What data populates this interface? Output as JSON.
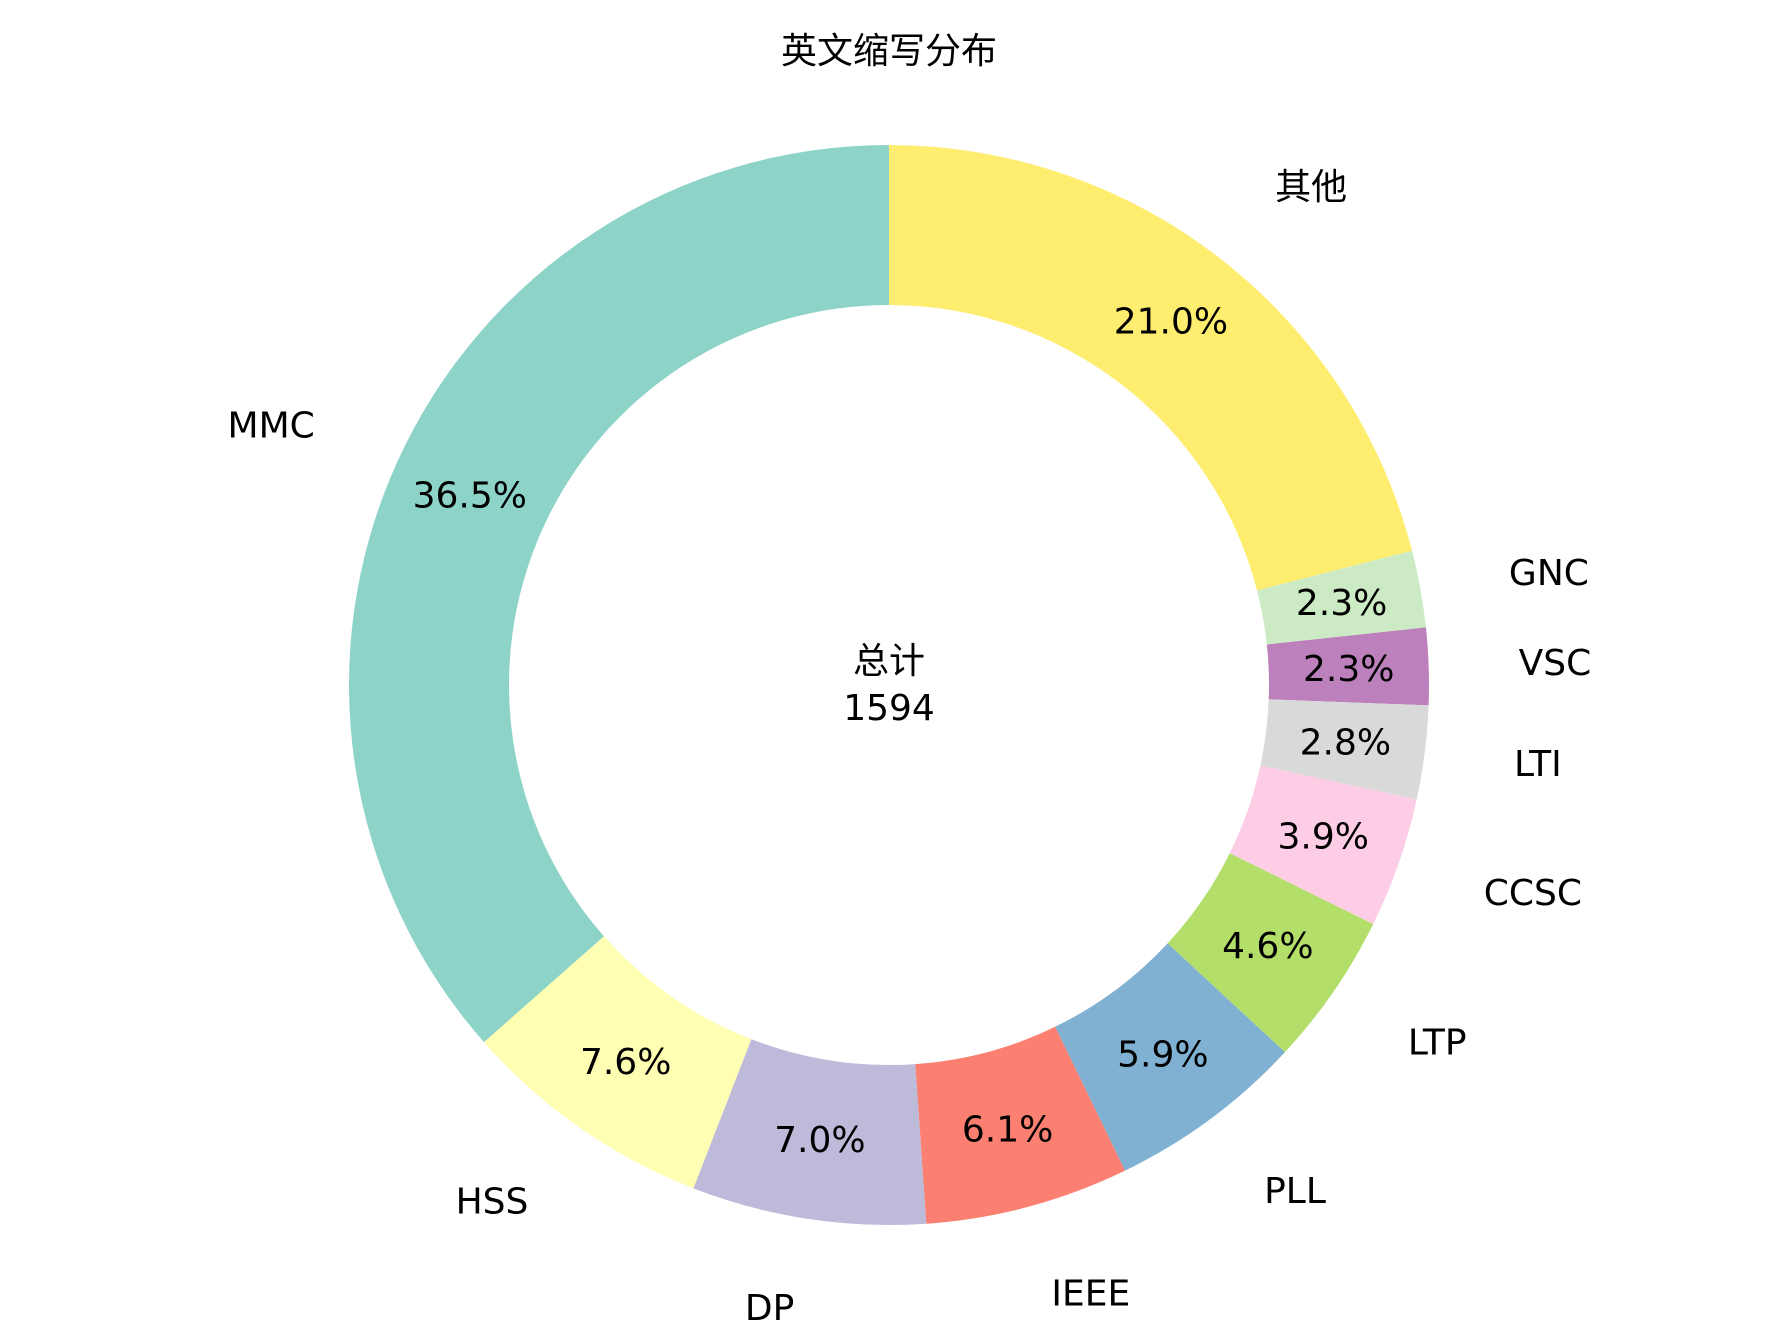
{
  "chart_data": {
    "type": "pie",
    "variant": "donut",
    "title": "英文缩写分布",
    "center": {
      "label": "总计",
      "value": "1594"
    },
    "start_angle_deg": 90,
    "direction": "clockwise",
    "legend": "none",
    "slices": [
      {
        "label": "其他",
        "percent": 21.0,
        "pct_text": "21.0%",
        "color": "#ffed6f"
      },
      {
        "label": "GNC",
        "percent": 2.3,
        "pct_text": "2.3%",
        "color": "#ccebc5"
      },
      {
        "label": "VSC",
        "percent": 2.3,
        "pct_text": "2.3%",
        "color": "#bc80bd"
      },
      {
        "label": "LTI",
        "percent": 2.8,
        "pct_text": "2.8%",
        "color": "#d9d9d9"
      },
      {
        "label": "CCSC",
        "percent": 3.9,
        "pct_text": "3.9%",
        "color": "#fccde5"
      },
      {
        "label": "LTP",
        "percent": 4.6,
        "pct_text": "4.6%",
        "color": "#b3de69"
      },
      {
        "label": "PLL",
        "percent": 5.9,
        "pct_text": "5.9%",
        "color": "#80b1d3"
      },
      {
        "label": "IEEE",
        "percent": 6.1,
        "pct_text": "6.1%",
        "color": "#fb8072"
      },
      {
        "label": "DP",
        "percent": 7.0,
        "pct_text": "7.0%",
        "color": "#bebada"
      },
      {
        "label": "HSS",
        "percent": 7.6,
        "pct_text": "7.6%",
        "color": "#ffffb3"
      },
      {
        "label": "MMC",
        "percent": 36.5,
        "pct_text": "36.5%",
        "color": "#8dd3c7"
      }
    ]
  }
}
